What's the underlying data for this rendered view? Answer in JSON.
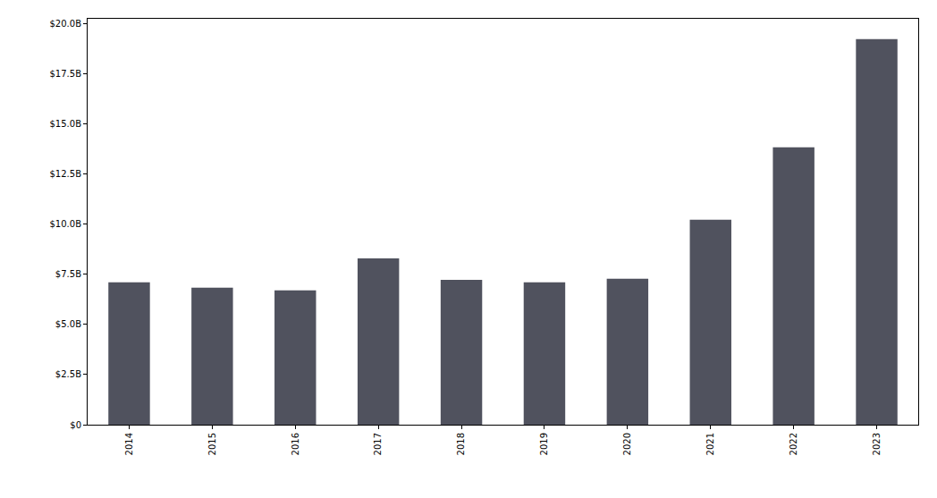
{
  "chart_data": {
    "type": "bar",
    "categories": [
      "2014",
      "2015",
      "2016",
      "2017",
      "2018",
      "2019",
      "2020",
      "2021",
      "2022",
      "2023"
    ],
    "values": [
      7.1,
      6.83,
      6.7,
      8.3,
      7.23,
      7.1,
      7.28,
      10.22,
      13.84,
      19.24
    ],
    "color": "#50525e",
    "ylim": [
      0,
      20.25
    ],
    "yticks": [
      {
        "value": 0,
        "label": "$0"
      },
      {
        "value": 2.5,
        "label": "$2.5B"
      },
      {
        "value": 5,
        "label": "$5.0B"
      },
      {
        "value": 7.5,
        "label": "$7.5B"
      },
      {
        "value": 10,
        "label": "$10.0B"
      },
      {
        "value": 12.5,
        "label": "$12.5B"
      },
      {
        "value": 15,
        "label": "$15.0B"
      },
      {
        "value": 17.5,
        "label": "$17.5B"
      },
      {
        "value": 20,
        "label": "$20.0B"
      }
    ],
    "grid": false
  }
}
